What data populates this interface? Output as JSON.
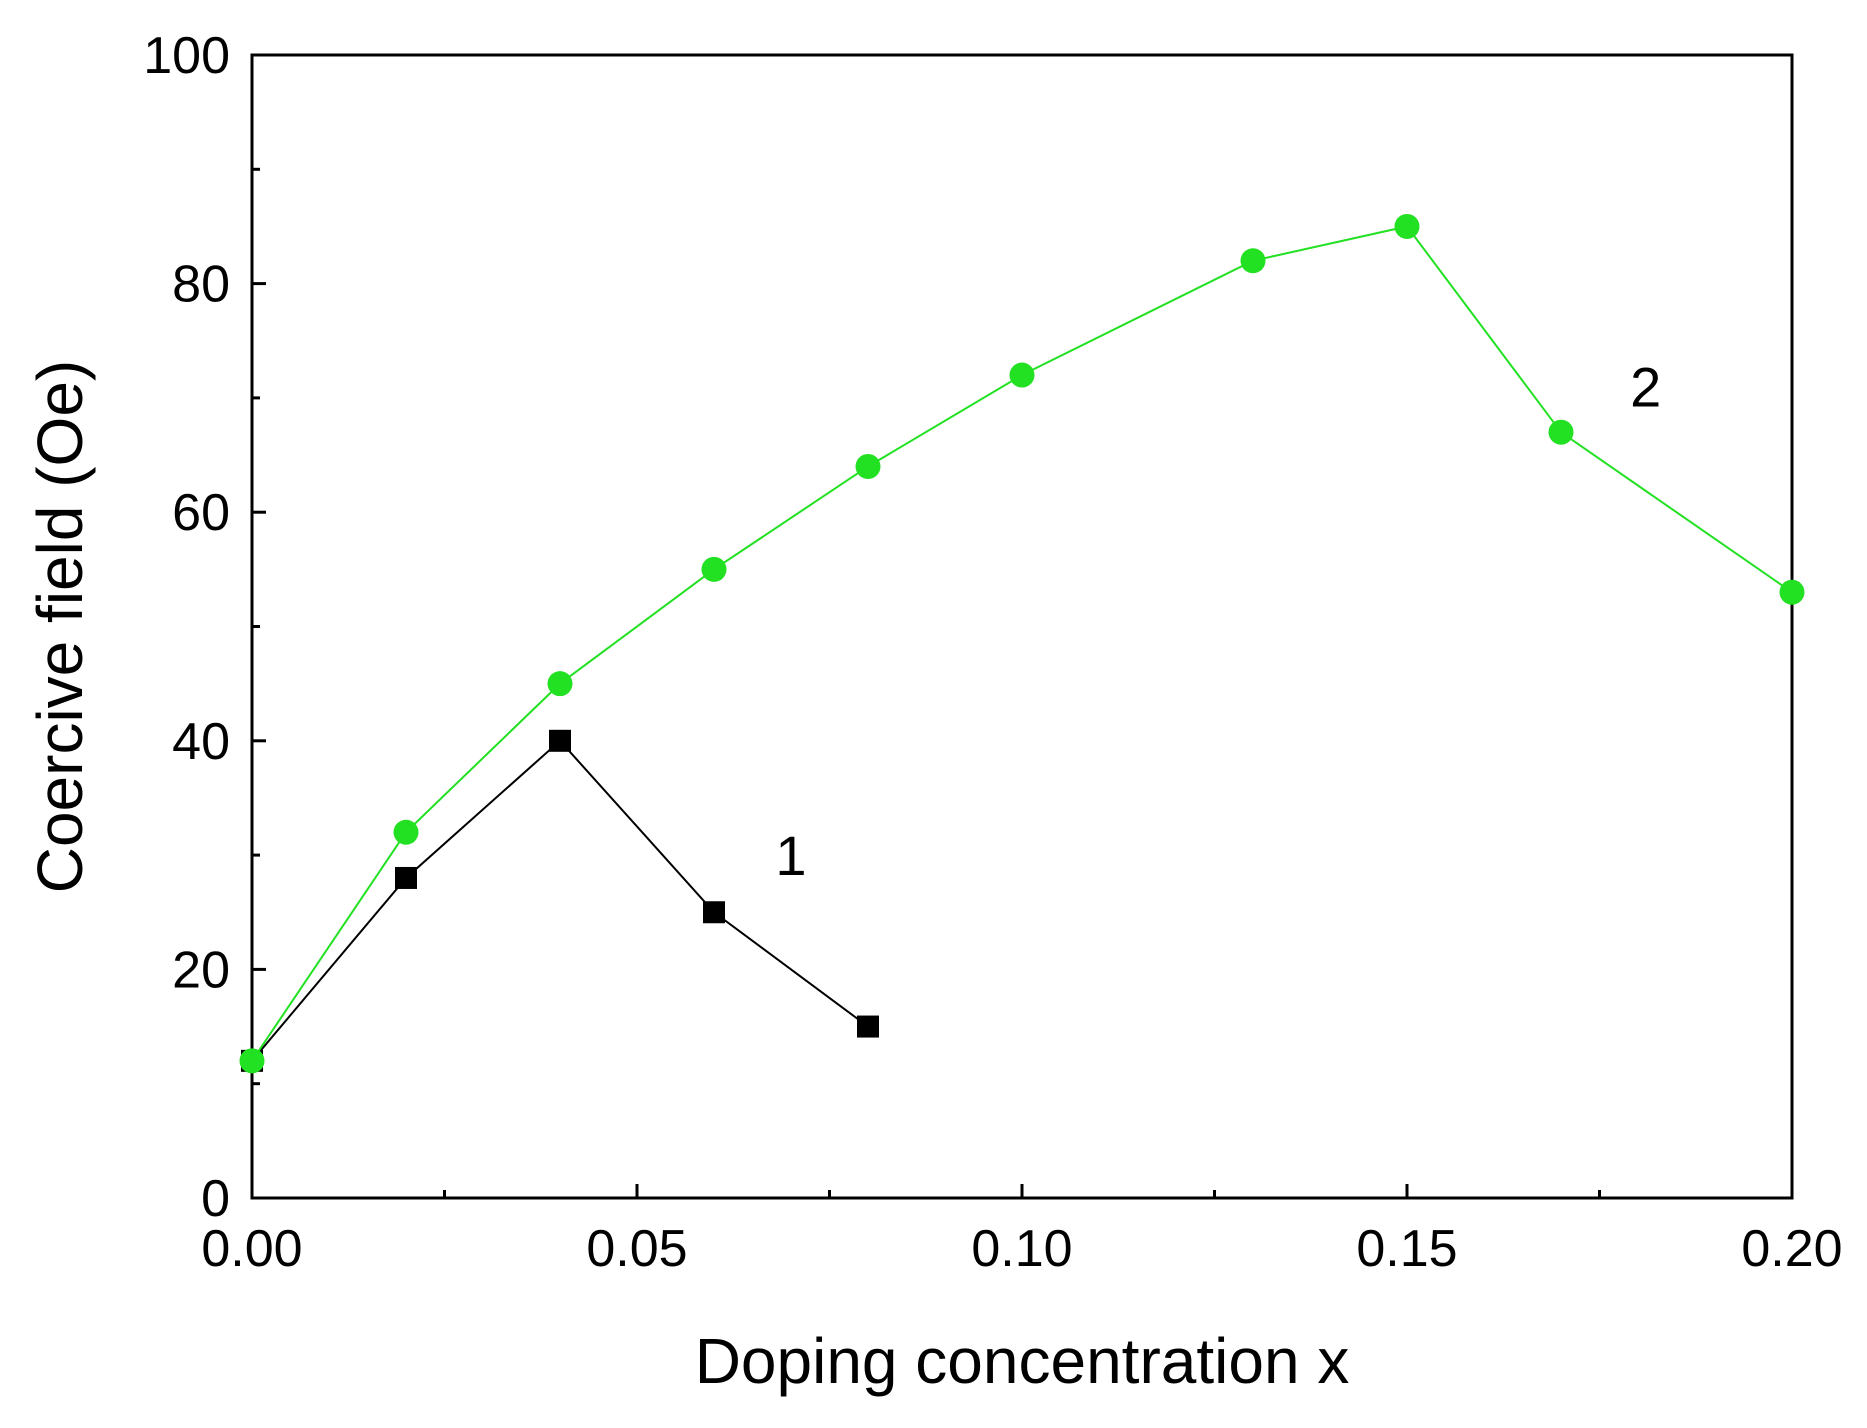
{
  "chart_data": {
    "type": "line",
    "xlabel": "Doping concentration x",
    "ylabel": "Coercive field (Oe)",
    "xlim": [
      0,
      0.2
    ],
    "ylim": [
      0,
      100
    ],
    "x_ticks": [
      0.0,
      0.05,
      0.1,
      0.15,
      0.2
    ],
    "x_tick_labels": [
      "0.00",
      "0.05",
      "0.10",
      "0.15",
      "0.20"
    ],
    "x_minor_ticks": [
      0.025,
      0.075,
      0.125,
      0.175
    ],
    "y_ticks": [
      0,
      20,
      40,
      60,
      80,
      100
    ],
    "y_tick_labels": [
      "0",
      "20",
      "40",
      "60",
      "80",
      "100"
    ],
    "y_minor_ticks": [
      10,
      30,
      50,
      70,
      90
    ],
    "grid": false,
    "series": [
      {
        "name": "1",
        "marker": "square",
        "color": "#000000",
        "x": [
          0.0,
          0.02,
          0.04,
          0.06,
          0.08
        ],
        "y": [
          12,
          28,
          40,
          25,
          15
        ],
        "label_at": [
          0.07,
          30
        ]
      },
      {
        "name": "2",
        "marker": "circle",
        "color": "#22e022",
        "x": [
          0.0,
          0.02,
          0.04,
          0.06,
          0.08,
          0.1,
          0.13,
          0.15,
          0.17,
          0.2
        ],
        "y": [
          12,
          32,
          45,
          55,
          64,
          72,
          82,
          85,
          67,
          53
        ],
        "label_at": [
          0.181,
          71
        ]
      }
    ]
  }
}
